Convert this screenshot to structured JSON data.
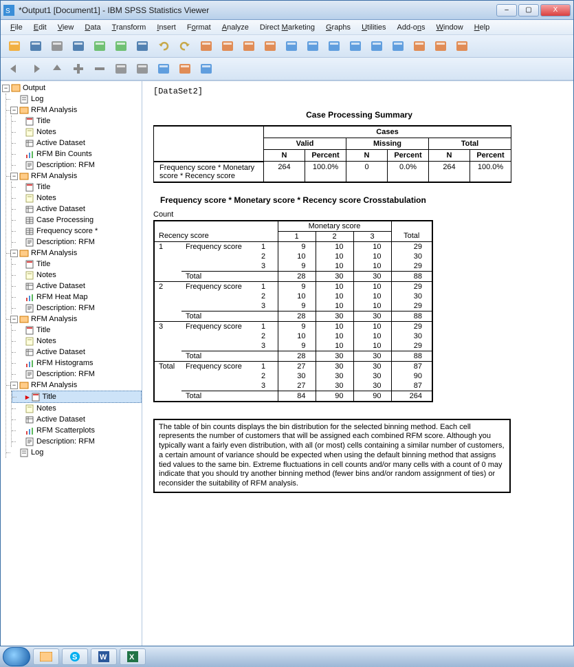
{
  "window": {
    "title": "*Output1 [Document1] - IBM SPSS Statistics Viewer",
    "controls": {
      "min": "–",
      "max": "▢",
      "close": "X"
    }
  },
  "menu": [
    "File",
    "Edit",
    "View",
    "Data",
    "Transform",
    "Insert",
    "Format",
    "Analyze",
    "Direct Marketing",
    "Graphs",
    "Utilities",
    "Add-ons",
    "Window",
    "Help"
  ],
  "menu_mnemonic": [
    "F",
    "E",
    "V",
    "D",
    "T",
    "I",
    "o",
    "A",
    "M",
    "G",
    "U",
    "n",
    "W",
    "H"
  ],
  "toolbar1": [
    "open",
    "save",
    "print",
    "preview",
    "export",
    "run",
    "dialog",
    "undo",
    "redo",
    "goto",
    "goto-case",
    "variables",
    "find",
    "insert-case",
    "split",
    "weight",
    "select",
    "chart",
    "recent",
    "topics",
    "spell",
    "script"
  ],
  "toolbar2": [
    "back",
    "forward",
    "up",
    "add",
    "remove",
    "collapse",
    "expand",
    "show-hide",
    "designate",
    "page-break"
  ],
  "outline": {
    "root": "Output",
    "items": [
      {
        "label": "Log",
        "icon": "log"
      },
      {
        "label": "RFM Analysis",
        "icon": "folder",
        "children": [
          {
            "label": "Title",
            "icon": "title"
          },
          {
            "label": "Notes",
            "icon": "notes"
          },
          {
            "label": "Active Dataset",
            "icon": "dataset"
          },
          {
            "label": "RFM Bin Counts",
            "icon": "chart"
          },
          {
            "label": "Description: RFM",
            "icon": "text"
          }
        ]
      },
      {
        "label": "RFM Analysis",
        "icon": "folder",
        "children": [
          {
            "label": "Title",
            "icon": "title"
          },
          {
            "label": "Notes",
            "icon": "notes"
          },
          {
            "label": "Active Dataset",
            "icon": "dataset"
          },
          {
            "label": "Case Processing",
            "icon": "table"
          },
          {
            "label": "Frequency score *",
            "icon": "table"
          },
          {
            "label": "Description: RFM",
            "icon": "text"
          }
        ]
      },
      {
        "label": "RFM Analysis",
        "icon": "folder",
        "children": [
          {
            "label": "Title",
            "icon": "title"
          },
          {
            "label": "Notes",
            "icon": "notes"
          },
          {
            "label": "Active Dataset",
            "icon": "dataset"
          },
          {
            "label": "RFM Heat Map",
            "icon": "chart"
          },
          {
            "label": "Description: RFM",
            "icon": "text"
          }
        ]
      },
      {
        "label": "RFM Analysis",
        "icon": "folder",
        "children": [
          {
            "label": "Title",
            "icon": "title"
          },
          {
            "label": "Notes",
            "icon": "notes"
          },
          {
            "label": "Active Dataset",
            "icon": "dataset"
          },
          {
            "label": "RFM Histograms",
            "icon": "chart"
          },
          {
            "label": "Description: RFM",
            "icon": "text"
          }
        ]
      },
      {
        "label": "RFM Analysis",
        "icon": "folder",
        "children": [
          {
            "label": "Title",
            "icon": "title",
            "sel": true
          },
          {
            "label": "Notes",
            "icon": "notes"
          },
          {
            "label": "Active Dataset",
            "icon": "dataset"
          },
          {
            "label": "RFM Scatterplots",
            "icon": "chart"
          },
          {
            "label": "Description: RFM",
            "icon": "text"
          }
        ]
      },
      {
        "label": "Log",
        "icon": "log"
      }
    ]
  },
  "content": {
    "dataset": "[DataSet2]",
    "cps": {
      "title": "Case Processing Summary",
      "group_header": "Cases",
      "cols": [
        "Valid",
        "Missing",
        "Total"
      ],
      "subcols": [
        "N",
        "Percent",
        "N",
        "Percent",
        "N",
        "Percent"
      ],
      "rowlabel": "Frequency score * Monetary score * Recency score",
      "values": [
        "264",
        "100.0%",
        "0",
        "0.0%",
        "264",
        "100.0%"
      ]
    },
    "cross": {
      "title": "Frequency score * Monetary score * Recency score Crosstabulation",
      "count_label": "Count",
      "col_group": "Monetary score",
      "cols": [
        "1",
        "2",
        "3"
      ],
      "total_col": "Total",
      "row_group": "Recency score",
      "freq_label": "Frequency score",
      "total_row": "Total",
      "blocks": [
        {
          "key": "1",
          "rows": [
            {
              "k": "1",
              "v": [
                9,
                10,
                10,
                29
              ]
            },
            {
              "k": "2",
              "v": [
                10,
                10,
                10,
                30
              ]
            },
            {
              "k": "3",
              "v": [
                9,
                10,
                10,
                29
              ]
            }
          ],
          "total": [
            28,
            30,
            30,
            88
          ]
        },
        {
          "key": "2",
          "rows": [
            {
              "k": "1",
              "v": [
                9,
                10,
                10,
                29
              ]
            },
            {
              "k": "2",
              "v": [
                10,
                10,
                10,
                30
              ]
            },
            {
              "k": "3",
              "v": [
                9,
                10,
                10,
                29
              ]
            }
          ],
          "total": [
            28,
            30,
            30,
            88
          ]
        },
        {
          "key": "3",
          "rows": [
            {
              "k": "1",
              "v": [
                9,
                10,
                10,
                29
              ]
            },
            {
              "k": "2",
              "v": [
                10,
                10,
                10,
                30
              ]
            },
            {
              "k": "3",
              "v": [
                9,
                10,
                10,
                29
              ]
            }
          ],
          "total": [
            28,
            30,
            30,
            88
          ]
        },
        {
          "key": "Total",
          "rows": [
            {
              "k": "1",
              "v": [
                27,
                30,
                30,
                87
              ]
            },
            {
              "k": "2",
              "v": [
                30,
                30,
                30,
                90
              ]
            },
            {
              "k": "3",
              "v": [
                27,
                30,
                30,
                87
              ]
            }
          ],
          "total": [
            84,
            90,
            90,
            264
          ]
        }
      ]
    },
    "description": "The table of bin counts displays the bin distribution for the selected binning method. Each cell represents the number of customers that will be assigned each combined RFM score. Although you typically want a fairly even distribution, with all (or most) cells containing a similar number of customers, a certain amount of variance should be expected when using the default binning method that assigns tied values to the same bin. Extreme fluctuations in cell counts and/or many cells with a count of 0 may indicate that you should try another binning method (fewer bins and/or random assignment of ties) or reconsider the suitability of RFM analysis."
  },
  "colors": {
    "titlebar_top": "#dfe9f5",
    "titlebar_bottom": "#b8d0ea",
    "border": "#3a6ea5",
    "menu_bg": "#e2ecf7",
    "toolbar_bg": "#d5e4f4",
    "selection": "#cde3f8"
  }
}
